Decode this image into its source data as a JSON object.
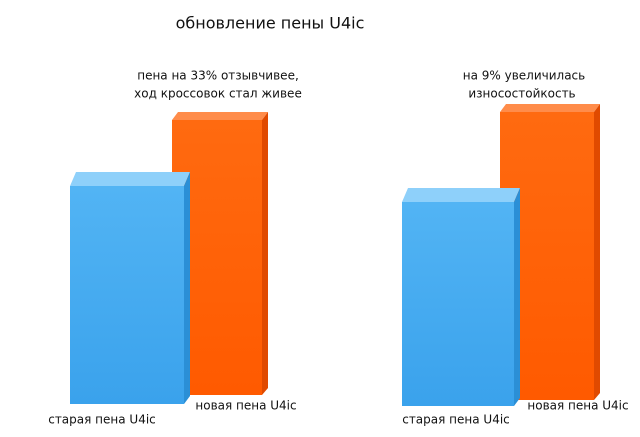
{
  "title": "обновление пены U4ic",
  "panels": [
    {
      "note": [
        "пена на 33% отзывчивее,",
        "ход кроссовок стал живее"
      ],
      "old_label": "старая пена U4ic",
      "new_label": "новая пена U4ic"
    },
    {
      "note": [
        "на 9% увеличилась",
        "износостойкость"
      ],
      "old_label": "старая пена U4ic",
      "new_label": "новая пена U4ic"
    }
  ]
}
